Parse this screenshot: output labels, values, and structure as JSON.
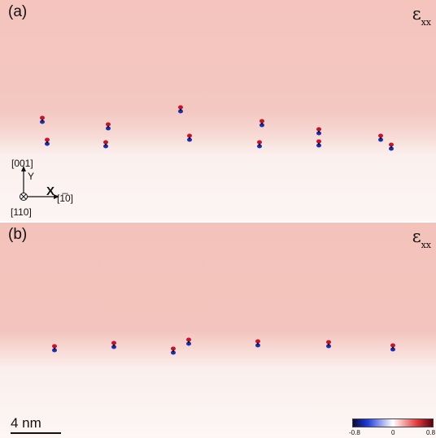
{
  "panel_a": {
    "label": "(a)",
    "quantity": "ε",
    "quantity_sub": "xx",
    "axes": {
      "up_direction": "[001]",
      "up_axis": "Y",
      "right_axis": "X",
      "right_direction": "[1̅0]",
      "out_of_plane": "[110]"
    }
  },
  "panel_b": {
    "label": "(b)",
    "quantity": "ε",
    "quantity_sub": "xx"
  },
  "scale_bar": {
    "label": "4 nm"
  },
  "colorbar": {
    "ticks": [
      "-0.8",
      "0",
      "0.8"
    ],
    "colors": [
      "#0b0b3a",
      "#1e3bd8",
      "#ffffff",
      "#e23a3a",
      "#5a0010"
    ]
  },
  "colors": {
    "strain_top": "#f2c3bd",
    "strain_bottom": "#fbf2f0"
  }
}
